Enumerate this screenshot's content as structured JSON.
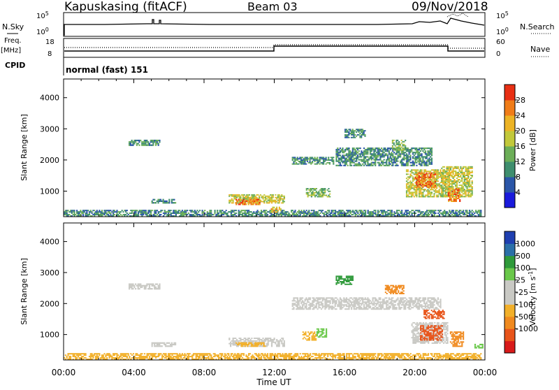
{
  "header": {
    "station": "Kapuskasing (fitACF)",
    "beam": "Beam 03",
    "date": "09/Nov/2018"
  },
  "status_panels": {
    "nsky_label": "N.Sky",
    "nsearch_label": "N.Search",
    "noise_ticks": [
      "10^5",
      "10^0"
    ],
    "freq_label": "Freq.",
    "freq_unit": "[MHz]",
    "freq_ticks": [
      "18",
      "8"
    ],
    "nave_label": "Nave",
    "nave_ticks": [
      "60",
      "0"
    ],
    "cpid_label": "CPID",
    "cpid_value": "normal (fast) 151"
  },
  "colors": {
    "power_scale": [
      "#1a1adc",
      "#2b56a8",
      "#3f8e6e",
      "#6cae58",
      "#c2c83a",
      "#ecb325",
      "#f07c18",
      "#e82f14"
    ],
    "velocity_scale": [
      "#d81a1a",
      "#e8541a",
      "#f08a1f",
      "#f2b02a",
      "#c9c9c4",
      "#c9c9c4",
      "#6ac84a",
      "#2f9a3a",
      "#2b6fa8",
      "#1f3fb0"
    ]
  },
  "chart_data": [
    {
      "type": "heatmap",
      "panel": "power",
      "ylabel": "Slant Range [km]",
      "yticks": [
        "1000",
        "2000",
        "3000",
        "4000"
      ],
      "ylim": [
        180,
        4600
      ],
      "xlim": [
        "00:00",
        "24:00"
      ],
      "colorbar_label": "Power [dB]",
      "colorbar_ticks": [
        "4",
        "8",
        "12",
        "16",
        "20",
        "24",
        "28"
      ],
      "colorbar_range": [
        0,
        32
      ],
      "regions": [
        {
          "t0": 0.0,
          "t1": 23.8,
          "r0": 180,
          "r1": 400,
          "level": 10
        },
        {
          "t0": 9.4,
          "t1": 12.6,
          "r0": 600,
          "r1": 900,
          "level": 18
        },
        {
          "t0": 9.8,
          "t1": 11.2,
          "r0": 550,
          "r1": 750,
          "level": 27
        },
        {
          "t0": 5.0,
          "t1": 6.4,
          "r0": 600,
          "r1": 750,
          "level": 9
        },
        {
          "t0": 3.7,
          "t1": 5.5,
          "r0": 2450,
          "r1": 2650,
          "level": 8
        },
        {
          "t0": 13.8,
          "t1": 15.2,
          "r0": 800,
          "r1": 1100,
          "level": 14
        },
        {
          "t0": 13.0,
          "t1": 15.4,
          "r0": 1850,
          "r1": 2100,
          "level": 8
        },
        {
          "t0": 15.5,
          "t1": 21.0,
          "r0": 1800,
          "r1": 2400,
          "level": 8
        },
        {
          "t0": 18.7,
          "t1": 19.5,
          "r0": 2300,
          "r1": 2650,
          "level": 14
        },
        {
          "t0": 19.5,
          "t1": 22.0,
          "r0": 800,
          "r1": 1700,
          "level": 16
        },
        {
          "t0": 20.0,
          "t1": 21.2,
          "r0": 1100,
          "r1": 1600,
          "level": 26
        },
        {
          "t0": 21.5,
          "t1": 23.3,
          "r0": 800,
          "r1": 1800,
          "level": 18
        },
        {
          "t0": 21.9,
          "t1": 22.6,
          "r0": 650,
          "r1": 1100,
          "level": 27
        },
        {
          "t0": 16.0,
          "t1": 17.2,
          "r0": 2700,
          "r1": 3000,
          "level": 8
        },
        {
          "t0": 11.8,
          "t1": 12.4,
          "r0": 300,
          "r1": 500,
          "level": 20
        }
      ]
    },
    {
      "type": "heatmap",
      "panel": "velocity",
      "ylabel": "Slant Range [km]",
      "yticks": [
        "1000",
        "2000",
        "3000",
        "4000"
      ],
      "ylim": [
        180,
        4600
      ],
      "xlabel": "Time UT",
      "xticks": [
        "00:00",
        "04:00",
        "08:00",
        "12:00",
        "16:00",
        "20:00",
        "00:00"
      ],
      "xlim": [
        "00:00",
        "24:00"
      ],
      "colorbar_label": "Velocity [m s^-1]",
      "colorbar_ticks": [
        "1000",
        "500",
        "100",
        "25",
        "-25",
        "-100",
        "-500",
        "-1000"
      ],
      "regions": [
        {
          "t0": 0.0,
          "t1": 23.8,
          "r0": 180,
          "r1": 400,
          "level": 3
        },
        {
          "t0": 9.4,
          "t1": 12.6,
          "r0": 600,
          "r1": 900,
          "level": 4
        },
        {
          "t0": 9.8,
          "t1": 11.5,
          "r0": 600,
          "r1": 750,
          "level": 3
        },
        {
          "t0": 5.0,
          "t1": 6.4,
          "r0": 600,
          "r1": 750,
          "level": 4
        },
        {
          "t0": 3.7,
          "t1": 5.5,
          "r0": 2450,
          "r1": 2650,
          "level": 4
        },
        {
          "t0": 13.6,
          "t1": 14.4,
          "r0": 800,
          "r1": 1100,
          "level": 3
        },
        {
          "t0": 14.4,
          "t1": 15.0,
          "r0": 900,
          "r1": 1200,
          "level": 6
        },
        {
          "t0": 13.0,
          "t1": 21.5,
          "r0": 1800,
          "r1": 2200,
          "level": 4
        },
        {
          "t0": 18.3,
          "t1": 19.4,
          "r0": 2300,
          "r1": 2600,
          "level": 2
        },
        {
          "t0": 20.5,
          "t1": 21.7,
          "r0": 1500,
          "r1": 1800,
          "level": 1
        },
        {
          "t0": 19.8,
          "t1": 21.9,
          "r0": 700,
          "r1": 1400,
          "level": 4
        },
        {
          "t0": 20.3,
          "t1": 21.6,
          "r0": 800,
          "r1": 1300,
          "level": 1
        },
        {
          "t0": 22.0,
          "t1": 22.8,
          "r0": 600,
          "r1": 1100,
          "level": 2
        },
        {
          "t0": 15.5,
          "t1": 16.5,
          "r0": 2600,
          "r1": 2900,
          "level": 7
        },
        {
          "t0": 23.4,
          "t1": 23.9,
          "r0": 550,
          "r1": 700,
          "level": 6
        }
      ]
    }
  ]
}
